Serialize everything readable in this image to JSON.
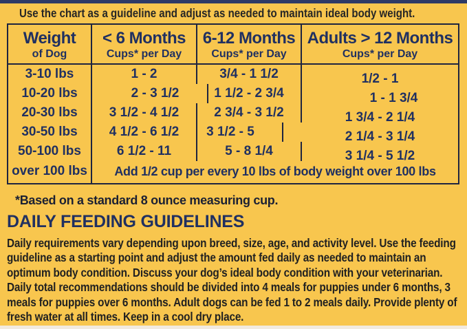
{
  "intro": "Use the chart as a guideline and adjust as needed to maintain ideal body weight.",
  "colors": {
    "background": "#F8C64E",
    "navy_text": "#203061",
    "table_border": "#1E2440",
    "body_text": "#212121",
    "top_bar": "#2E3A66",
    "bottom_bar": "#F1EAE0"
  },
  "table": {
    "columns": [
      {
        "title": "Weight",
        "subtitle": "of Dog"
      },
      {
        "title": "< 6 Months",
        "subtitle": "Cups* per Day"
      },
      {
        "title": "6-12 Months",
        "subtitle": "Cups* per Day"
      },
      {
        "title": "Adults > 12 Months",
        "subtitle": "Cups* per Day"
      }
    ],
    "rows": [
      {
        "weight": "3-10 lbs",
        "under_6_months": "1 - 2",
        "months_6_12": "3/4 - 1 1/2",
        "adults": "1/2 - 1"
      },
      {
        "weight": "10-20 lbs",
        "under_6_months": "2 - 3 1/2",
        "months_6_12": "1 1/2 - 2 3/4",
        "adults": "1 - 1 3/4"
      },
      {
        "weight": "20-30 lbs",
        "under_6_months": "3 1/2 - 4 1/2",
        "months_6_12": "2 3/4 - 3 1/2",
        "adults": "1 3/4 - 2 1/4"
      },
      {
        "weight": "30-50 lbs",
        "under_6_months": "4 1/2 - 6 1/2",
        "months_6_12": "3 1/2 - 5",
        "adults": "2 1/4 - 3 1/4"
      },
      {
        "weight": "50-100 lbs",
        "under_6_months": "6 1/2 - 11",
        "months_6_12": "5 - 8 1/4",
        "adults": "3 1/4 - 5 1/2"
      }
    ],
    "over_row": {
      "weight": "over 100 lbs",
      "note": "Add 1/2 cup per every 10 lbs of body weight over 100 lbs"
    }
  },
  "footnote": "*Based on a standard 8 ounce measuring cup.",
  "guidelines": {
    "heading": "DAILY FEEDING GUIDELINES",
    "body": "Daily requirements vary depending upon breed, size, age, and activity level. Use the feeding guideline as a starting point and adjust the amount fed daily as needed to maintain an optimum body condition. Discuss your dog’s ideal body condition with your veterinarian. Daily total recommendations should be divided into 4 meals for puppies under 6 months, 3 meals for puppies over 6 months. Adult dogs can be fed 1 to 2 meals daily. Provide plenty of fresh water at all times. Keep in a cool dry place."
  }
}
